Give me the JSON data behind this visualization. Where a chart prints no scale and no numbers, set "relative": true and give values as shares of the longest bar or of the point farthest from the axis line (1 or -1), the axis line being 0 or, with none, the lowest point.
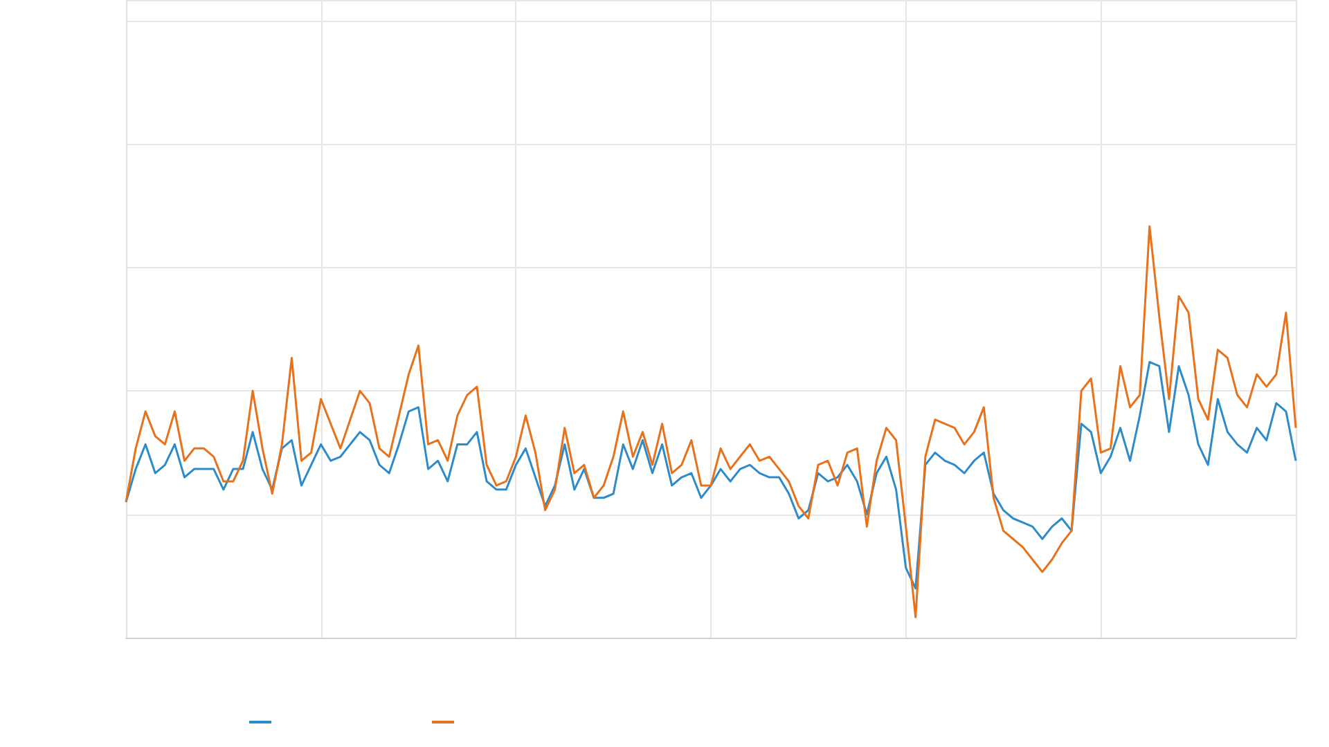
{
  "chart_data": {
    "type": "line",
    "relative": true,
    "grid": true,
    "categories": [
      null,
      null,
      null,
      null,
      null,
      null,
      null,
      null,
      null,
      null,
      null,
      null,
      null,
      null,
      null,
      null,
      null,
      null,
      null,
      null,
      null,
      null,
      null,
      null,
      null,
      null,
      null,
      null,
      null,
      null,
      null,
      null,
      null,
      null,
      null,
      null,
      null,
      null,
      null,
      null,
      null,
      null,
      null,
      null,
      null,
      null,
      null,
      null,
      null,
      null,
      null,
      null,
      null,
      null,
      null,
      null,
      null,
      null,
      null,
      null,
      null,
      null,
      null,
      null,
      null,
      null,
      null,
      null,
      null,
      null,
      null,
      null,
      null,
      null,
      null,
      null,
      null,
      null,
      null,
      null,
      null,
      null,
      null,
      null,
      null,
      null,
      null,
      null,
      null,
      null,
      null,
      null,
      null,
      null,
      null,
      null,
      null,
      null,
      null,
      null,
      null,
      null,
      null,
      null,
      null,
      null,
      null,
      null,
      null,
      null,
      null,
      null,
      null,
      null,
      null,
      null,
      null,
      null,
      null,
      null,
      null
    ],
    "series": [
      {
        "color": "#2e8bc9",
        "values": [
          0.33,
          0.41,
          0.47,
          0.4,
          0.42,
          0.47,
          0.39,
          0.41,
          0.41,
          0.41,
          0.36,
          0.41,
          0.41,
          0.5,
          0.41,
          0.36,
          0.46,
          0.48,
          0.37,
          0.42,
          0.47,
          0.43,
          0.44,
          0.47,
          0.5,
          0.48,
          0.42,
          0.4,
          0.47,
          0.55,
          0.56,
          0.41,
          0.43,
          0.38,
          0.47,
          0.47,
          0.5,
          0.38,
          0.36,
          0.36,
          0.42,
          0.46,
          0.39,
          0.32,
          0.37,
          0.47,
          0.36,
          0.41,
          0.34,
          0.34,
          0.35,
          0.47,
          0.41,
          0.48,
          0.4,
          0.47,
          0.37,
          0.39,
          0.4,
          0.34,
          0.37,
          0.41,
          0.38,
          0.41,
          0.42,
          0.4,
          0.39,
          0.39,
          0.35,
          0.29,
          0.31,
          0.4,
          0.38,
          0.39,
          0.42,
          0.38,
          0.3,
          0.4,
          0.44,
          0.36,
          0.17,
          0.12,
          0.42,
          0.45,
          0.43,
          0.42,
          0.4,
          0.43,
          0.45,
          0.35,
          0.31,
          0.29,
          0.28,
          0.27,
          0.24,
          0.27,
          0.29,
          0.26,
          0.52,
          0.5,
          0.4,
          0.44,
          0.51,
          0.43,
          0.54,
          0.67,
          0.66,
          0.5,
          0.66,
          0.59,
          0.47,
          0.42,
          0.58,
          0.5,
          0.47,
          0.45,
          0.51,
          0.48,
          0.57,
          0.55,
          0.43
        ]
      },
      {
        "color": "#e8711c",
        "values": [
          0.33,
          0.46,
          0.55,
          0.49,
          0.47,
          0.55,
          0.43,
          0.46,
          0.46,
          0.44,
          0.38,
          0.38,
          0.43,
          0.6,
          0.46,
          0.35,
          0.47,
          0.68,
          0.43,
          0.45,
          0.58,
          0.52,
          0.46,
          0.53,
          0.6,
          0.57,
          0.46,
          0.44,
          0.54,
          0.64,
          0.71,
          0.47,
          0.48,
          0.43,
          0.54,
          0.59,
          0.61,
          0.42,
          0.37,
          0.38,
          0.44,
          0.54,
          0.45,
          0.31,
          0.36,
          0.51,
          0.4,
          0.42,
          0.34,
          0.37,
          0.44,
          0.55,
          0.44,
          0.5,
          0.42,
          0.52,
          0.4,
          0.42,
          0.48,
          0.37,
          0.37,
          0.46,
          0.41,
          0.44,
          0.47,
          0.43,
          0.44,
          0.41,
          0.38,
          0.32,
          0.29,
          0.42,
          0.43,
          0.37,
          0.45,
          0.46,
          0.27,
          0.43,
          0.51,
          0.48,
          0.27,
          0.05,
          0.44,
          0.53,
          0.52,
          0.51,
          0.47,
          0.5,
          0.56,
          0.34,
          0.26,
          0.24,
          0.22,
          0.19,
          0.16,
          0.19,
          0.23,
          0.26,
          0.6,
          0.63,
          0.45,
          0.46,
          0.66,
          0.56,
          0.59,
          1.0,
          0.78,
          0.58,
          0.83,
          0.79,
          0.58,
          0.53,
          0.7,
          0.68,
          0.59,
          0.56,
          0.64,
          0.61,
          0.64,
          0.79,
          0.51
        ]
      }
    ]
  }
}
